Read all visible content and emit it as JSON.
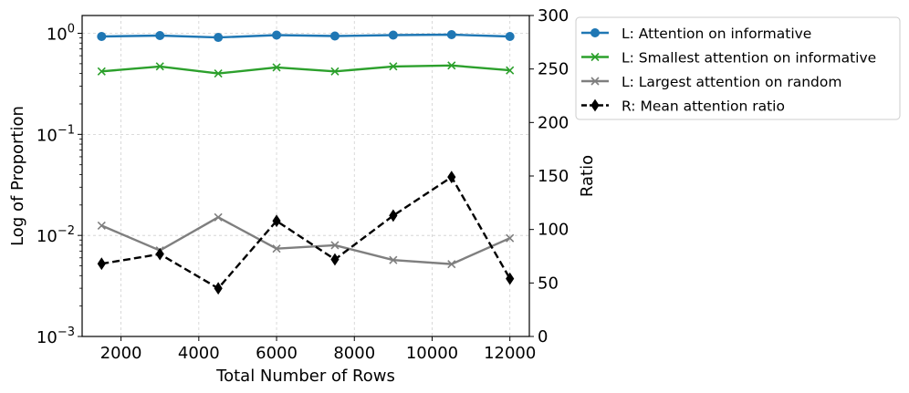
{
  "chart_data": {
    "type": "line",
    "x": [
      1500,
      3000,
      4500,
      6000,
      7500,
      9000,
      10500,
      12000
    ],
    "xlabel": "Total Number of Rows",
    "ylabel_left": "Log of Proportion",
    "ylabel_right": "Ratio",
    "xlim": [
      1000,
      12500
    ],
    "ylim_left": [
      0.001,
      1.5
    ],
    "yscale_left": "log",
    "ylim_right": [
      0,
      300
    ],
    "x_ticks": [
      2000,
      4000,
      6000,
      8000,
      10000,
      12000
    ],
    "x_tick_labels": [
      "2000",
      "4000",
      "6000",
      "8000",
      "10000",
      "12000"
    ],
    "y_left_ticks": [
      {
        "value": 1,
        "base": "10",
        "exp": "0"
      },
      {
        "value": 0.1,
        "base": "10",
        "exp": "−1"
      },
      {
        "value": 0.01,
        "base": "10",
        "exp": "−2"
      },
      {
        "value": 0.001,
        "base": "10",
        "exp": "−3"
      }
    ],
    "y_right_ticks": [
      0,
      50,
      100,
      150,
      200,
      250,
      300
    ],
    "y_right_tick_labels": [
      "0",
      "50",
      "100",
      "150",
      "200",
      "250",
      "300"
    ],
    "grid": true,
    "legend_position": "outside-top-right",
    "series": [
      {
        "name": "L: Attention on informative",
        "axis": "left",
        "color": "#1f77b4",
        "marker": "circle",
        "linestyle": "solid",
        "values": [
          0.93,
          0.95,
          0.91,
          0.96,
          0.94,
          0.96,
          0.97,
          0.93
        ]
      },
      {
        "name": "L: Smallest attention on informative",
        "axis": "left",
        "color": "#2ca02c",
        "marker": "x",
        "linestyle": "solid",
        "values": [
          0.42,
          0.47,
          0.4,
          0.46,
          0.42,
          0.47,
          0.48,
          0.43
        ]
      },
      {
        "name": "L: Largest attention on random",
        "axis": "left",
        "color": "#7f7f7f",
        "marker": "x",
        "linestyle": "solid",
        "values": [
          0.0125,
          0.0071,
          0.0151,
          0.0074,
          0.008,
          0.0057,
          0.0052,
          0.0094
        ]
      },
      {
        "name": "R: Mean attention ratio",
        "axis": "right",
        "color": "#000000",
        "marker": "diamond",
        "linestyle": "dashed",
        "values": [
          68,
          77,
          45,
          108,
          72,
          113,
          149,
          54
        ]
      }
    ]
  }
}
